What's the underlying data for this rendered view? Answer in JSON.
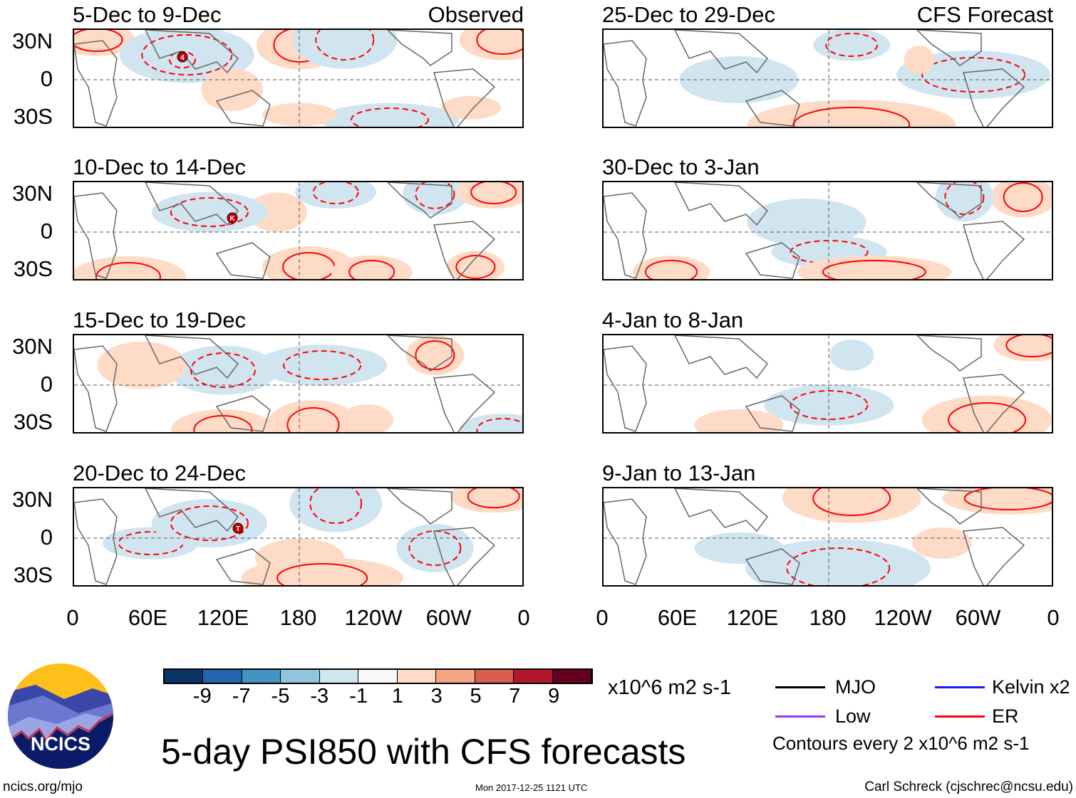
{
  "chart_data": {
    "type": "heatmap",
    "title": "5-day PSI850 with CFS forecasts",
    "units": "x10^6 m2 s-1",
    "lat_ticks": [
      "30N",
      "0",
      "30S"
    ],
    "lon_ticks": [
      "0",
      "60E",
      "120E",
      "180",
      "120W",
      "60W",
      "0"
    ],
    "colorbar": {
      "labels": [
        "-9",
        "-7",
        "-5",
        "-3",
        "-1",
        "1",
        "3",
        "5",
        "7",
        "9"
      ],
      "colors": [
        "#0b3466",
        "#2265ac",
        "#4394c4",
        "#91c4de",
        "#d1e5f0",
        "#f8f8f8",
        "#fddbc7",
        "#f4a582",
        "#d6604d",
        "#b2182b",
        "#67001f"
      ]
    },
    "columns": [
      {
        "label": "Observed",
        "panels": [
          {
            "title": "5-Dec to 9-Dec",
            "storms": [
              "4"
            ]
          },
          {
            "title": "10-Dec to 14-Dec",
            "storms": [
              "K"
            ]
          },
          {
            "title": "15-Dec to 19-Dec",
            "storms": []
          },
          {
            "title": "20-Dec to 24-Dec",
            "storms": [
              "T"
            ]
          }
        ]
      },
      {
        "label": "CFS Forecast",
        "panels": [
          {
            "title": "25-Dec to 29-Dec",
            "storms": []
          },
          {
            "title": "30-Dec to 3-Jan",
            "storms": []
          },
          {
            "title": "4-Jan to 8-Jan",
            "storms": []
          },
          {
            "title": "9-Jan to 13-Jan",
            "storms": []
          }
        ]
      }
    ],
    "legend": [
      {
        "label": "MJO",
        "color": "#000000"
      },
      {
        "label": "Kelvin x2",
        "color": "#1a1aff"
      },
      {
        "label": "Low",
        "color": "#9b30ff"
      },
      {
        "label": "ER",
        "color": "#ff0000"
      }
    ],
    "contour_note": "Contours every 2 x10^6 m2 s-1"
  },
  "footer": {
    "logo_text": "NCICS",
    "site": "ncics.org/mjo",
    "timestamp": "Mon 2017-12-25 1121 UTC",
    "author": "Carl Schreck (cjschrec@ncsu.edu)"
  }
}
